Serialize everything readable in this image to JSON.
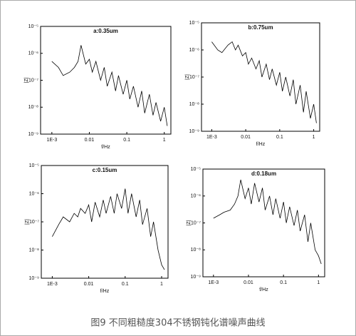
{
  "chart_data": [
    {
      "type": "line",
      "title": "a:0.35um",
      "x_label": "f/Hz",
      "y_label": "|Z|",
      "log_x": true,
      "log_y": true,
      "color": "#000000",
      "x": [
        0.001,
        0.0015,
        0.002,
        0.003,
        0.004,
        0.005,
        0.006,
        0.008,
        0.01,
        0.012,
        0.015,
        0.02,
        0.025,
        0.03,
        0.04,
        0.05,
        0.06,
        0.08,
        0.1,
        0.12,
        0.15,
        0.2,
        0.25,
        0.3,
        0.4,
        0.5,
        0.6,
        0.8,
        1,
        1.2
      ],
      "values": [
        5e-07,
        3e-07,
        1.5e-07,
        2e-07,
        3e-07,
        5e-07,
        2e-06,
        4e-07,
        6e-07,
        2e-07,
        5e-07,
        1e-07,
        3e-07,
        6e-08,
        2e-07,
        4e-08,
        1.5e-07,
        3e-08,
        1e-07,
        2e-08,
        6e-08,
        1e-08,
        4e-08,
        6e-09,
        3e-08,
        5e-09,
        1.5e-08,
        3e-09,
        1e-08,
        2e-09
      ],
      "xlim": [
        0.0005,
        1.5
      ],
      "xticks": [
        {
          "value": 0.001,
          "label": "1E-3"
        },
        0.01,
        0.1,
        1
      ],
      "ylim": [
        1e-09,
        1e-05
      ],
      "yticks": [
        {
          "value": 1e-09,
          "label": "10⁻⁹"
        },
        {
          "value": 1e-08,
          "label": "10⁻⁸"
        },
        {
          "value": 1e-07,
          "label": "10⁻⁷"
        },
        {
          "value": 1e-06,
          "label": "10⁻⁶"
        },
        {
          "value": 1e-05,
          "label": "10⁻⁵"
        }
      ]
    },
    {
      "type": "line",
      "title": "b:0.75um",
      "x_label": "f/Hz",
      "y_label": "|Z|",
      "log_x": true,
      "log_y": true,
      "color": "#000000",
      "x": [
        0.001,
        0.0015,
        0.002,
        0.003,
        0.004,
        0.005,
        0.006,
        0.008,
        0.01,
        0.012,
        0.015,
        0.02,
        0.025,
        0.03,
        0.04,
        0.05,
        0.06,
        0.08,
        0.1,
        0.12,
        0.15,
        0.2,
        0.25,
        0.3,
        0.4,
        0.5,
        0.6,
        0.8,
        1,
        1.2
      ],
      "values": [
        2e-06,
        1e-06,
        8e-07,
        1.5e-06,
        2e-06,
        1e-06,
        1.5e-06,
        6e-07,
        8e-07,
        3e-07,
        5e-07,
        2e-07,
        4e-07,
        1e-07,
        3e-07,
        8e-08,
        2e-07,
        5e-08,
        1.5e-07,
        3e-08,
        1e-07,
        2e-08,
        8e-08,
        1e-08,
        5e-08,
        5e-09,
        3e-08,
        3e-09,
        1e-08,
        2e-09
      ],
      "xlim": [
        0.0005,
        1.5
      ],
      "xticks": [
        {
          "value": 0.001,
          "label": "1E-3"
        },
        0.01,
        0.1,
        1
      ],
      "ylim": [
        1e-09,
        1e-05
      ],
      "yticks": [
        {
          "value": 1e-09,
          "label": "10⁻⁹"
        },
        {
          "value": 1e-08,
          "label": "10⁻⁸"
        },
        {
          "value": 1e-07,
          "label": "10⁻⁷"
        },
        {
          "value": 1e-06,
          "label": "10⁻⁶"
        },
        {
          "value": 1e-05,
          "label": "10⁻⁵"
        }
      ]
    },
    {
      "type": "line",
      "title": "c:0.15um",
      "x_label": "f/Hz",
      "y_label": "|Z|",
      "log_x": true,
      "log_y": true,
      "color": "#000000",
      "x": [
        0.001,
        0.0015,
        0.002,
        0.003,
        0.004,
        0.005,
        0.006,
        0.008,
        0.01,
        0.012,
        0.015,
        0.02,
        0.025,
        0.03,
        0.04,
        0.05,
        0.06,
        0.08,
        0.1,
        0.12,
        0.15,
        0.2,
        0.25,
        0.3,
        0.4,
        0.5,
        0.6,
        0.8,
        1,
        1.2
      ],
      "values": [
        3e-08,
        8e-08,
        1.5e-07,
        1e-07,
        2e-07,
        1.5e-07,
        3e-07,
        2e-07,
        4e-07,
        1e-07,
        5e-07,
        1.5e-07,
        6e-07,
        2e-07,
        8e-07,
        2e-07,
        1e-06,
        3e-07,
        1.5e-06,
        2e-07,
        1e-06,
        1.5e-07,
        6e-07,
        8e-08,
        3e-07,
        3e-08,
        1e-07,
        1e-08,
        3e-09,
        2e-09
      ],
      "xlim": [
        0.0005,
        1.5
      ],
      "xticks": [
        {
          "value": 0.001,
          "label": "1E-3"
        },
        0.01,
        0.1,
        1
      ],
      "ylim": [
        1e-09,
        1e-05
      ],
      "yticks": [
        {
          "value": 1e-09,
          "label": "10⁻⁹"
        },
        {
          "value": 1e-08,
          "label": "10⁻⁸"
        },
        {
          "value": 1e-07,
          "label": "10⁻⁷"
        },
        {
          "value": 1e-06,
          "label": "10⁻⁶"
        },
        {
          "value": 1e-05,
          "label": "10⁻⁵"
        }
      ]
    },
    {
      "type": "line",
      "title": "d:0.18um",
      "x_label": "f/Hz",
      "y_label": "|Z|",
      "log_x": true,
      "log_y": true,
      "color": "#000000",
      "x": [
        0.001,
        0.0015,
        0.002,
        0.003,
        0.004,
        0.005,
        0.006,
        0.008,
        0.01,
        0.012,
        0.015,
        0.02,
        0.025,
        0.03,
        0.04,
        0.05,
        0.06,
        0.08,
        0.1,
        0.12,
        0.15,
        0.2,
        0.25,
        0.3,
        0.4,
        0.5,
        0.6,
        0.8,
        1,
        1.2
      ],
      "values": [
        1.5e-07,
        2e-07,
        2.5e-07,
        3e-07,
        5e-07,
        1e-06,
        4e-06,
        8e-07,
        2e-06,
        5e-07,
        3e-06,
        6e-07,
        2e-06,
        3e-07,
        1e-06,
        2e-07,
        8e-07,
        1.5e-07,
        6e-07,
        1e-07,
        4e-07,
        8e-08,
        3e-07,
        5e-08,
        2e-07,
        2e-08,
        1e-07,
        1e-08,
        6e-09,
        3e-09
      ],
      "xlim": [
        0.0005,
        1.5
      ],
      "xticks": [
        {
          "value": 0.001,
          "label": "1E-3"
        },
        0.01,
        0.1,
        1
      ],
      "ylim": [
        1e-09,
        1e-05
      ],
      "yticks": [
        {
          "value": 1e-09,
          "label": "10⁻⁹"
        },
        {
          "value": 1e-08,
          "label": "10⁻⁸"
        },
        {
          "value": 1e-07,
          "label": "10⁻⁷"
        },
        {
          "value": 1e-06,
          "label": "10⁻⁶"
        },
        {
          "value": 1e-05,
          "label": "10⁻⁵"
        }
      ]
    }
  ],
  "caption": "图9 不同粗糙度304不锈钢钝化谱噪声曲线"
}
